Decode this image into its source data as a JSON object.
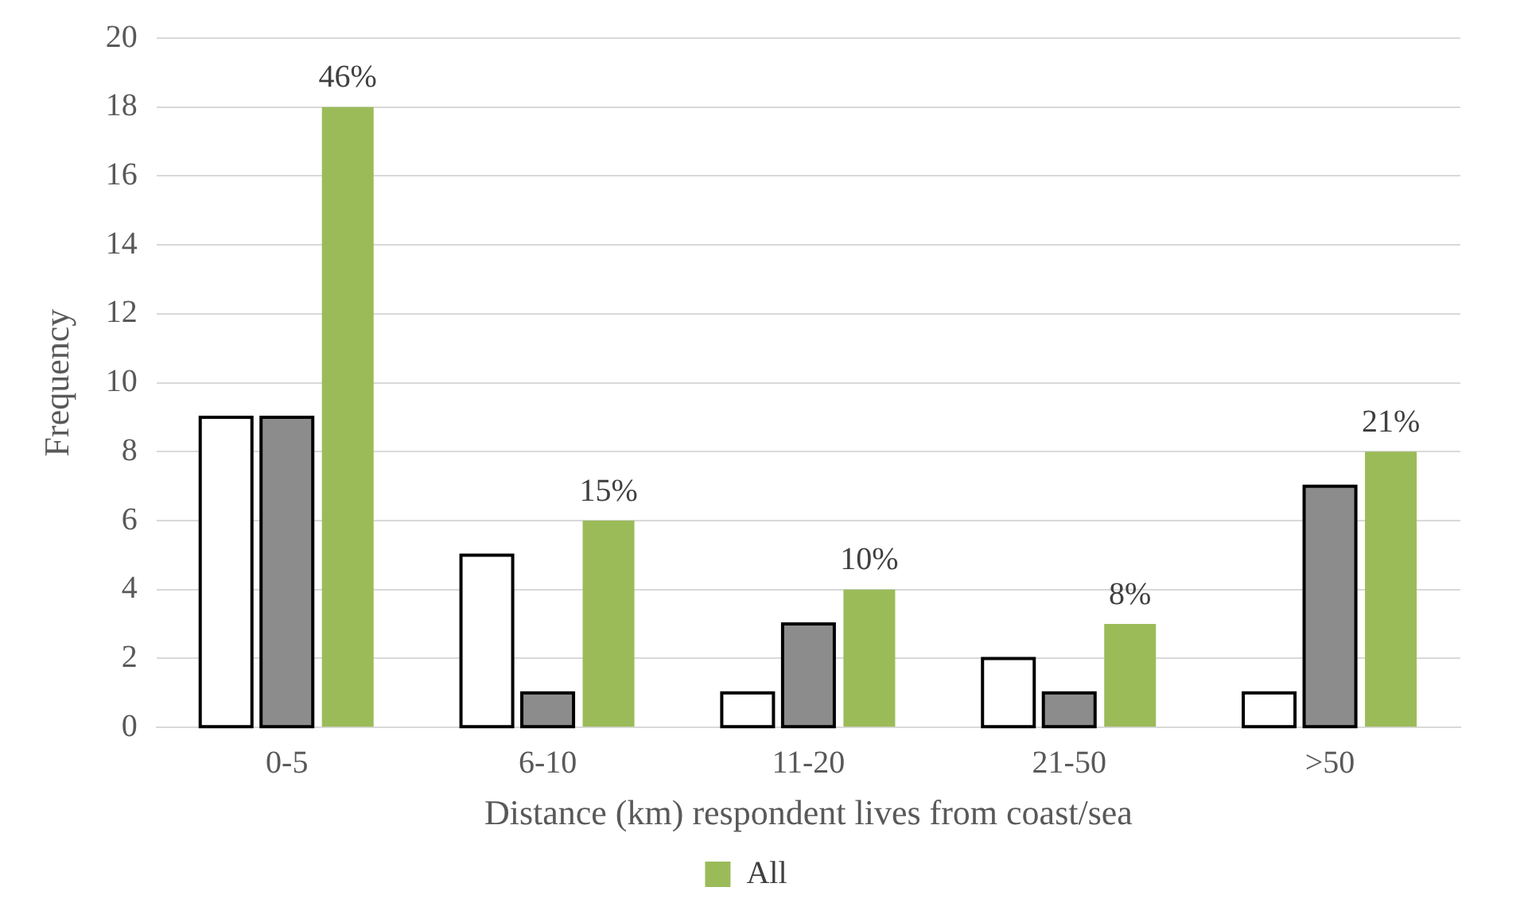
{
  "chart_data": {
    "type": "bar",
    "xlabel": "Distance (km) respondent lives from coast/sea",
    "ylabel": "Frequency",
    "categories": [
      "0-5",
      "6-10",
      "11-20",
      "21-50",
      ">50"
    ],
    "series": [
      {
        "color": "#ffffff",
        "values": [
          9,
          5,
          1,
          2,
          1
        ]
      },
      {
        "color": "#8c8c8c",
        "values": [
          9,
          1,
          3,
          1,
          7
        ]
      },
      {
        "name": "All",
        "color": "#9bbb59",
        "values": [
          18,
          6,
          4,
          3,
          8
        ]
      }
    ],
    "annotations": [
      "46%",
      "15%",
      "10%",
      "8%",
      "21%"
    ],
    "ylim": [
      0,
      20
    ],
    "yticks": [
      0,
      2,
      4,
      6,
      8,
      10,
      12,
      14,
      16,
      18,
      20
    ],
    "grid": "y",
    "legend": "bottom"
  }
}
